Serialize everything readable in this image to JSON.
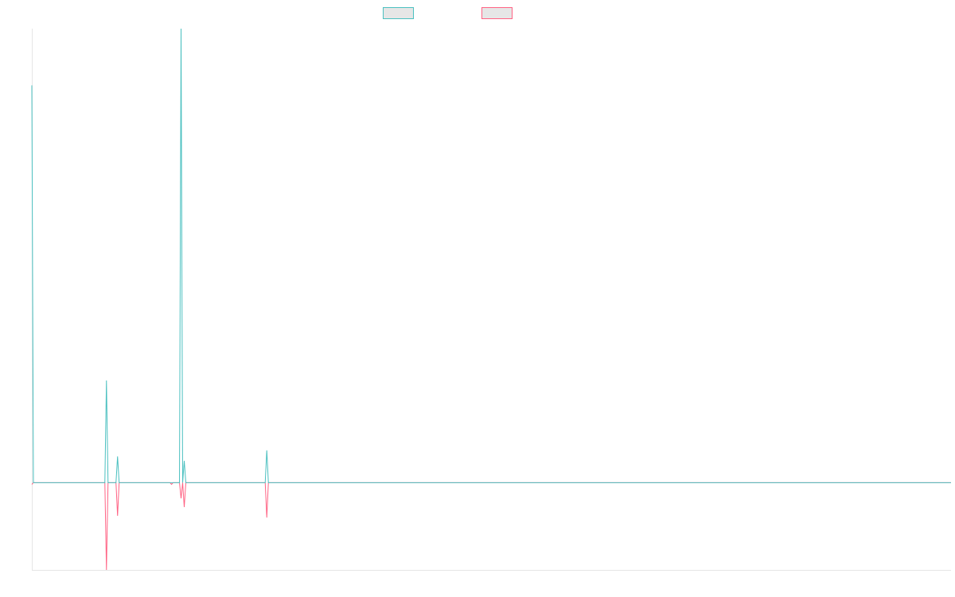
{
  "chart_data": {
    "type": "line",
    "title": "",
    "xlabel": "",
    "ylabel": "",
    "grid": false,
    "legend_position": "top-center",
    "x": [
      0,
      1,
      2,
      3,
      4,
      5,
      6,
      7,
      8,
      9,
      10,
      11,
      12,
      13,
      14,
      15,
      16,
      17,
      18,
      19,
      20,
      21,
      22,
      23,
      24,
      25,
      26,
      27,
      28,
      29,
      30,
      31,
      32,
      33,
      34,
      35,
      36,
      37,
      38,
      39,
      40,
      41,
      42,
      43,
      44,
      45,
      46,
      47,
      48,
      49,
      50,
      51,
      52,
      53,
      54,
      55,
      56,
      57,
      58,
      59,
      60,
      61,
      62,
      63,
      64,
      65,
      66,
      67,
      68,
      69,
      70,
      71,
      72,
      73,
      74,
      75,
      76,
      77,
      78,
      79,
      80,
      81,
      82,
      83,
      84,
      85,
      86,
      87,
      88,
      89,
      90,
      91,
      92,
      93,
      94,
      95,
      96,
      97,
      98,
      99,
      100,
      101,
      102,
      103,
      104,
      105,
      106,
      107,
      108,
      109,
      110,
      111,
      112,
      113,
      114,
      115,
      116,
      117,
      118,
      119,
      120,
      121,
      122,
      123,
      124,
      125,
      126,
      127,
      128,
      129,
      130,
      131,
      132,
      133,
      134,
      135,
      136,
      137,
      138,
      139,
      140,
      141,
      142,
      143,
      144,
      145,
      146,
      147,
      148,
      149,
      150,
      151,
      152,
      153,
      154,
      155,
      156,
      157,
      158,
      159,
      160,
      161,
      162,
      163,
      164,
      165,
      166,
      167,
      168,
      169,
      170,
      171,
      172,
      173,
      174,
      175,
      176,
      177,
      178,
      179,
      180,
      181,
      182,
      183,
      184,
      185,
      186,
      187,
      188,
      189,
      190,
      191,
      192,
      193,
      194,
      195,
      196,
      197,
      198,
      199,
      200,
      201,
      202,
      203,
      204,
      205,
      206,
      207,
      208,
      209,
      210,
      211,
      212,
      213,
      214,
      215,
      216,
      217,
      218,
      219,
      220,
      221,
      222,
      223,
      224,
      225,
      226,
      227,
      228,
      229,
      230,
      231,
      232,
      233,
      234,
      235,
      236,
      237,
      238,
      239,
      240,
      241,
      242,
      243,
      244,
      245,
      246,
      247,
      248,
      249,
      250,
      251,
      252,
      253,
      254,
      255,
      256,
      257,
      258,
      259,
      260,
      261,
      262,
      263,
      264,
      265,
      266,
      267,
      268,
      269,
      270,
      271,
      272,
      273,
      274,
      275,
      276,
      277,
      278,
      279,
      280,
      281,
      282,
      283,
      284,
      285,
      286,
      287,
      288,
      289,
      290,
      291,
      292,
      293,
      294,
      295,
      296,
      297,
      298,
      299,
      300,
      301,
      302,
      303,
      304,
      305,
      306,
      307,
      308,
      309,
      310,
      311,
      312,
      313,
      314,
      315,
      316,
      317,
      318,
      319,
      320,
      321,
      322,
      323,
      324,
      325,
      326,
      327,
      328,
      329,
      330,
      331,
      332,
      333,
      334,
      335,
      336,
      337,
      338,
      339,
      340,
      341,
      342,
      343,
      344,
      345,
      346,
      347,
      348,
      349,
      350,
      351,
      352,
      353,
      354,
      355,
      356,
      357,
      358,
      359,
      360,
      361,
      362,
      363,
      364,
      365,
      366,
      367,
      368,
      369,
      370,
      371,
      372,
      373,
      374,
      375,
      376,
      377,
      378,
      379,
      380,
      381,
      382,
      383,
      384,
      385,
      386,
      387,
      388,
      389,
      390,
      391,
      392,
      393,
      394,
      395,
      396,
      397,
      398,
      399,
      400,
      401,
      402,
      403,
      404,
      405,
      406,
      407,
      408,
      409,
      410,
      411,
      412,
      413,
      414,
      415,
      416,
      417,
      418,
      419,
      420,
      421,
      422,
      423,
      424,
      425,
      426,
      427,
      428,
      429,
      430,
      431,
      432,
      433,
      434,
      435,
      436,
      437,
      438,
      439,
      440,
      441,
      442,
      443,
      444,
      445,
      446,
      447,
      448,
      449,
      450,
      451,
      452,
      453,
      454,
      455,
      456,
      457,
      458,
      459,
      460,
      461,
      462,
      463,
      464,
      465,
      466,
      467,
      468,
      469,
      470,
      471,
      472,
      473,
      474,
      475,
      476,
      477,
      478,
      479,
      480,
      481,
      482,
      483,
      484,
      485,
      486,
      487,
      488,
      489,
      490,
      491,
      492,
      493,
      494,
      495,
      496,
      497,
      498,
      499,
      500,
      501,
      502,
      503,
      504,
      505,
      506,
      507,
      508,
      509,
      510,
      511,
      512,
      513,
      514,
      515,
      516,
      517,
      518,
      519,
      520,
      521,
      522,
      523,
      524,
      525,
      526,
      527,
      528,
      529,
      530,
      531,
      532,
      533,
      534,
      535,
      536,
      537,
      538,
      539,
      540,
      541,
      542,
      543,
      544,
      545,
      546,
      547,
      548,
      549,
      550,
      551,
      552,
      553,
      554,
      555,
      556,
      557,
      558,
      559,
      560,
      561,
      562,
      563,
      564,
      565,
      566,
      567,
      568,
      569,
      570,
      571,
      572,
      573,
      574,
      575,
      576,
      577,
      578,
      579
    ],
    "ylim": [
      -1,
      5.2
    ],
    "series": [
      {
        "name": "",
        "color": "#4bc0c0",
        "sparse_values": {
          "0": 4.55,
          "47": 1.17,
          "54": 0.3,
          "94": 5.2,
          "96": 0.25,
          "148": 0.37
        },
        "default": 0
      },
      {
        "name": "",
        "color": "#ff6384",
        "sparse_values": {
          "0": -0.02,
          "47": -1.0,
          "54": -0.38,
          "88": -0.02,
          "94": -0.18,
          "96": -0.28,
          "148": -0.4
        },
        "default": 0
      }
    ]
  }
}
